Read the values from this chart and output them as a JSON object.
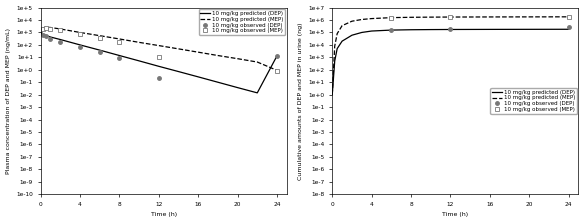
{
  "left": {
    "ylabel": "Plasma concentration of DEP and MEP (ng/mL)",
    "xlabel": "Time (h)",
    "ylim_log": [
      -10,
      5
    ],
    "xlim": [
      0,
      25
    ],
    "dep_line_times": [
      0,
      0.1,
      0.25,
      0.5,
      1,
      2,
      4,
      6,
      8,
      10,
      12,
      14,
      16,
      18,
      20,
      22,
      24
    ],
    "dep_line_vals": [
      800,
      750,
      680,
      580,
      430,
      270,
      100,
      38,
      14,
      5.2,
      1.9,
      0.72,
      0.27,
      0.1,
      0.037,
      0.014,
      13
    ],
    "mep_line_times": [
      0,
      0.1,
      0.25,
      0.5,
      1,
      2,
      4,
      6,
      8,
      10,
      12,
      14,
      16,
      18,
      20,
      22,
      24
    ],
    "mep_line_vals": [
      500,
      900,
      2200,
      2600,
      2500,
      1900,
      1000,
      550,
      300,
      160,
      88,
      48,
      26,
      14,
      7.8,
      4.2,
      0.9
    ],
    "dep_obs_times": [
      0.25,
      0.5,
      1,
      2,
      4,
      6,
      8,
      12,
      24
    ],
    "dep_obs_vals": [
      580,
      480,
      300,
      180,
      72,
      25,
      9.5,
      0.22,
      14
    ],
    "mep_obs_times": [
      0.25,
      0.5,
      1,
      2,
      4,
      6,
      8,
      12,
      24
    ],
    "mep_obs_vals": [
      1800,
      2200,
      2000,
      1500,
      700,
      350,
      180,
      10,
      0.85
    ],
    "legend_labels": [
      "10 mg/kg predicted (DEP)",
      "10 mg/kg predicted (MEP)",
      "10 mg/kg observed (DEP)",
      "10 mg/kg observed (MEP)"
    ]
  },
  "right": {
    "ylabel": "Cumulative amounts of DEP and MEP in urine (ng)",
    "xlabel": "Time (h)",
    "ylim_log": [
      -8,
      7
    ],
    "xlim": [
      0,
      25
    ],
    "dep_line_times": [
      0,
      0.25,
      0.5,
      1,
      2,
      3,
      4,
      6,
      8,
      10,
      12,
      16,
      20,
      24
    ],
    "dep_line_vals": [
      1,
      500,
      5000,
      20000,
      60000,
      100000,
      130000,
      155000,
      165000,
      170000,
      173000,
      176000,
      178000,
      180000
    ],
    "mep_line_times": [
      0,
      0.25,
      0.5,
      1,
      2,
      3,
      4,
      6,
      8,
      10,
      12,
      16,
      20,
      24
    ],
    "mep_line_vals": [
      1,
      8000,
      80000,
      350000,
      800000,
      1100000,
      1300000,
      1550000,
      1650000,
      1700000,
      1730000,
      1760000,
      1780000,
      1800000
    ],
    "dep_obs_times": [
      6,
      12,
      24
    ],
    "dep_obs_vals": [
      160000,
      175000,
      250000
    ],
    "mep_obs_times": [
      6,
      12,
      24
    ],
    "mep_obs_vals": [
      1550000,
      1700000,
      1800000
    ],
    "legend_labels": [
      "10 mg/kg predicted (DEP)",
      "10 mg/kg predicted (MEP)",
      "10 mg/kg observed (DEP)",
      "10 mg/kg observed (MEP)"
    ]
  },
  "line_color_dep": "#000000",
  "line_color_mep": "#000000",
  "marker_color_dep": "#777777",
  "marker_color_mep": "#aaaaaa",
  "fontsize": 4.5,
  "legend_fontsize": 4.0,
  "tick_fontsize": 4.2
}
